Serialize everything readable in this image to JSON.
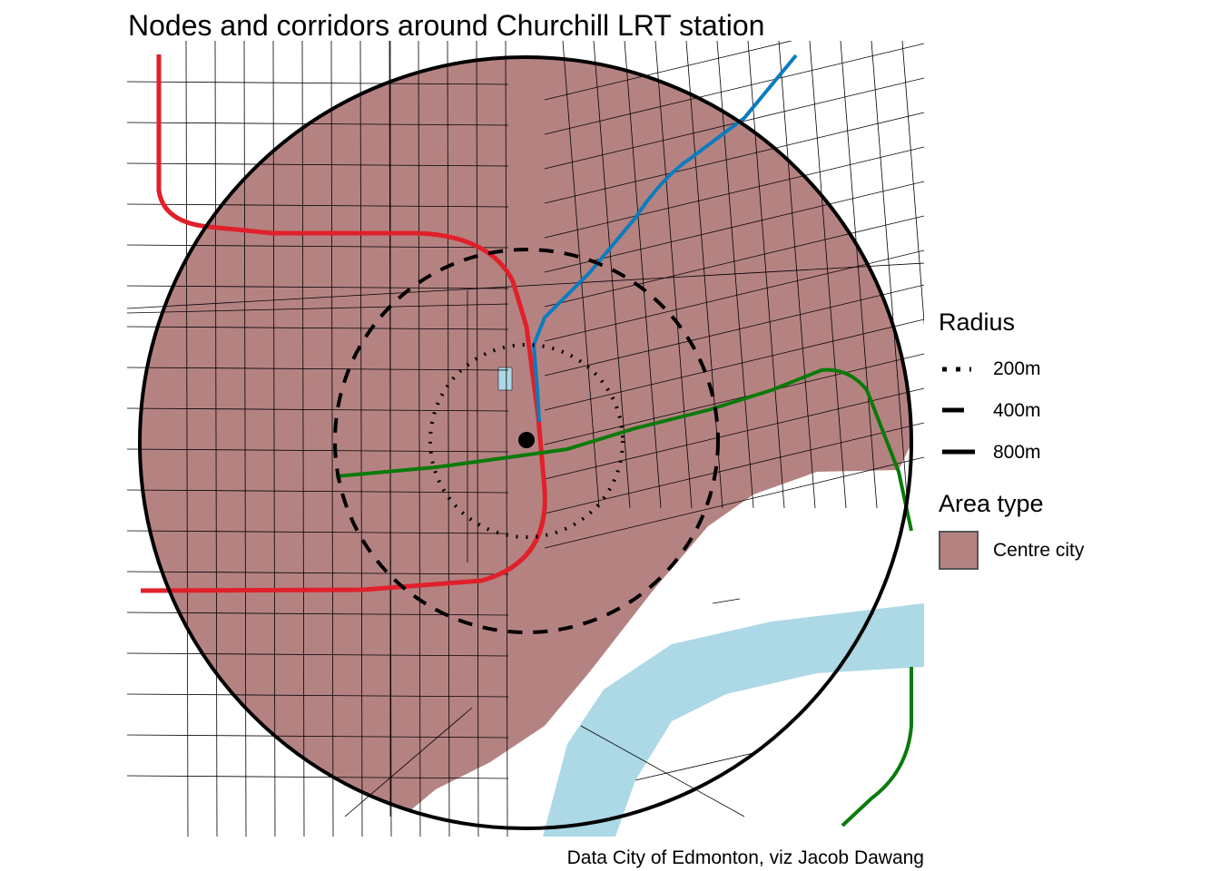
{
  "title": "Nodes and corridors around Churchill LRT station",
  "caption": "Data City of Edmonton, viz Jacob Dawang",
  "legend": {
    "radius_title": "Radius",
    "radius_items": [
      {
        "label": "200m",
        "linetype": "dotted"
      },
      {
        "label": "400m",
        "linetype": "dashed"
      },
      {
        "label": "800m",
        "linetype": "solid"
      }
    ],
    "area_title": "Area type",
    "area_items": [
      {
        "label": "Centre city",
        "color": "#b58282"
      }
    ]
  },
  "colors": {
    "centre_city": "#b58282",
    "water": "#add8e6",
    "corridor_red": "#e0202a",
    "corridor_blue": "#0a7cbf",
    "corridor_green": "#0a7a0a",
    "station": "#000000"
  }
}
